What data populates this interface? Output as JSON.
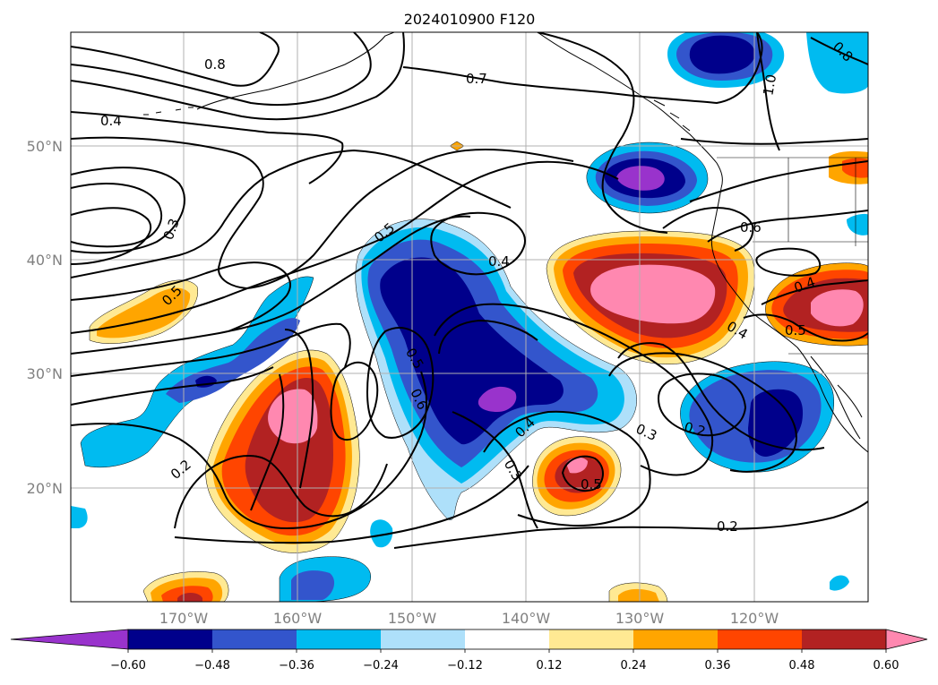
{
  "title": "2024010900 F120",
  "lat_labels": [
    "50°N",
    "40°N",
    "30°N",
    "20°N"
  ],
  "lon_labels": [
    "170°W",
    "160°W",
    "150°W",
    "140°W",
    "130°W",
    "120°W"
  ],
  "colorbar": {
    "ticks": [
      "−0.60",
      "−0.48",
      "−0.36",
      "−0.24",
      "−0.12",
      "0.12",
      "0.24",
      "0.36",
      "0.48",
      "0.60"
    ],
    "colors": [
      "#9933cc",
      "#00008b",
      "#3355cc",
      "#00bbf0",
      "#aee0fa",
      "#ffffff",
      "#ffe993",
      "#ffa500",
      "#ff4500",
      "#b22222",
      "#ff88b0"
    ]
  },
  "contour_labels": [
    {
      "text": "0.8"
    },
    {
      "text": "0.7"
    },
    {
      "text": "0.4"
    },
    {
      "text": "0.3"
    },
    {
      "text": "0.5"
    },
    {
      "text": "0.4"
    },
    {
      "text": "0.5"
    },
    {
      "text": "0.6"
    },
    {
      "text": "0.5"
    },
    {
      "text": "0.6"
    },
    {
      "text": "0.4"
    },
    {
      "text": "0.3"
    },
    {
      "text": "0.5"
    },
    {
      "text": "0.3"
    },
    {
      "text": "0.2"
    },
    {
      "text": "0.2"
    },
    {
      "text": "0.2"
    },
    {
      "text": "0.4"
    },
    {
      "text": "0.5"
    },
    {
      "text": "0.4"
    },
    {
      "text": "1.0"
    },
    {
      "text": "0.8"
    }
  ]
}
